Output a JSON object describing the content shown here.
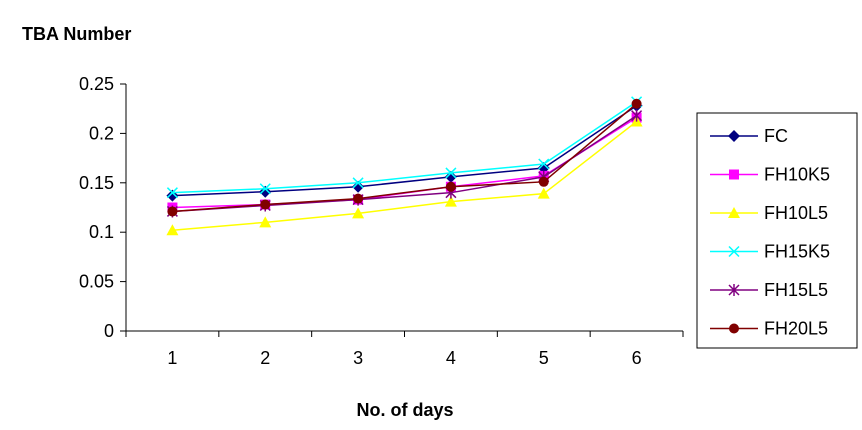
{
  "chart_data": {
    "type": "line",
    "ylabel": "TBA Number",
    "xlabel": "No. of days",
    "x": [
      1,
      2,
      3,
      4,
      5,
      6
    ],
    "ylim": [
      0,
      0.25
    ],
    "yticks": [
      0,
      0.05,
      0.1,
      0.15,
      0.2,
      0.25
    ],
    "ytick_labels": [
      "0",
      "0.05",
      "0.1",
      "0.15",
      "0.2",
      "0.25"
    ],
    "grid": false,
    "legend": "right",
    "series": [
      {
        "name": "FC",
        "color": "#000080",
        "marker": "diamond",
        "values": [
          0.137,
          0.141,
          0.146,
          0.156,
          0.165,
          0.228
        ]
      },
      {
        "name": "FH10K5",
        "color": "#ff00ff",
        "marker": "square",
        "values": [
          0.125,
          0.128,
          0.133,
          0.146,
          0.157,
          0.216
        ]
      },
      {
        "name": "FH10L5",
        "color": "#ffff00",
        "marker": "triangle",
        "values": [
          0.102,
          0.11,
          0.119,
          0.131,
          0.139,
          0.212
        ]
      },
      {
        "name": "FH15K5",
        "color": "#00ffff",
        "marker": "x",
        "values": [
          0.14,
          0.144,
          0.15,
          0.16,
          0.169,
          0.232
        ]
      },
      {
        "name": "FH15L5",
        "color": "#800080",
        "marker": "star",
        "values": [
          0.121,
          0.127,
          0.133,
          0.14,
          0.156,
          0.218
        ]
      },
      {
        "name": "FH20L5",
        "color": "#800000",
        "marker": "circle",
        "values": [
          0.121,
          0.128,
          0.134,
          0.146,
          0.151,
          0.23
        ]
      }
    ]
  }
}
